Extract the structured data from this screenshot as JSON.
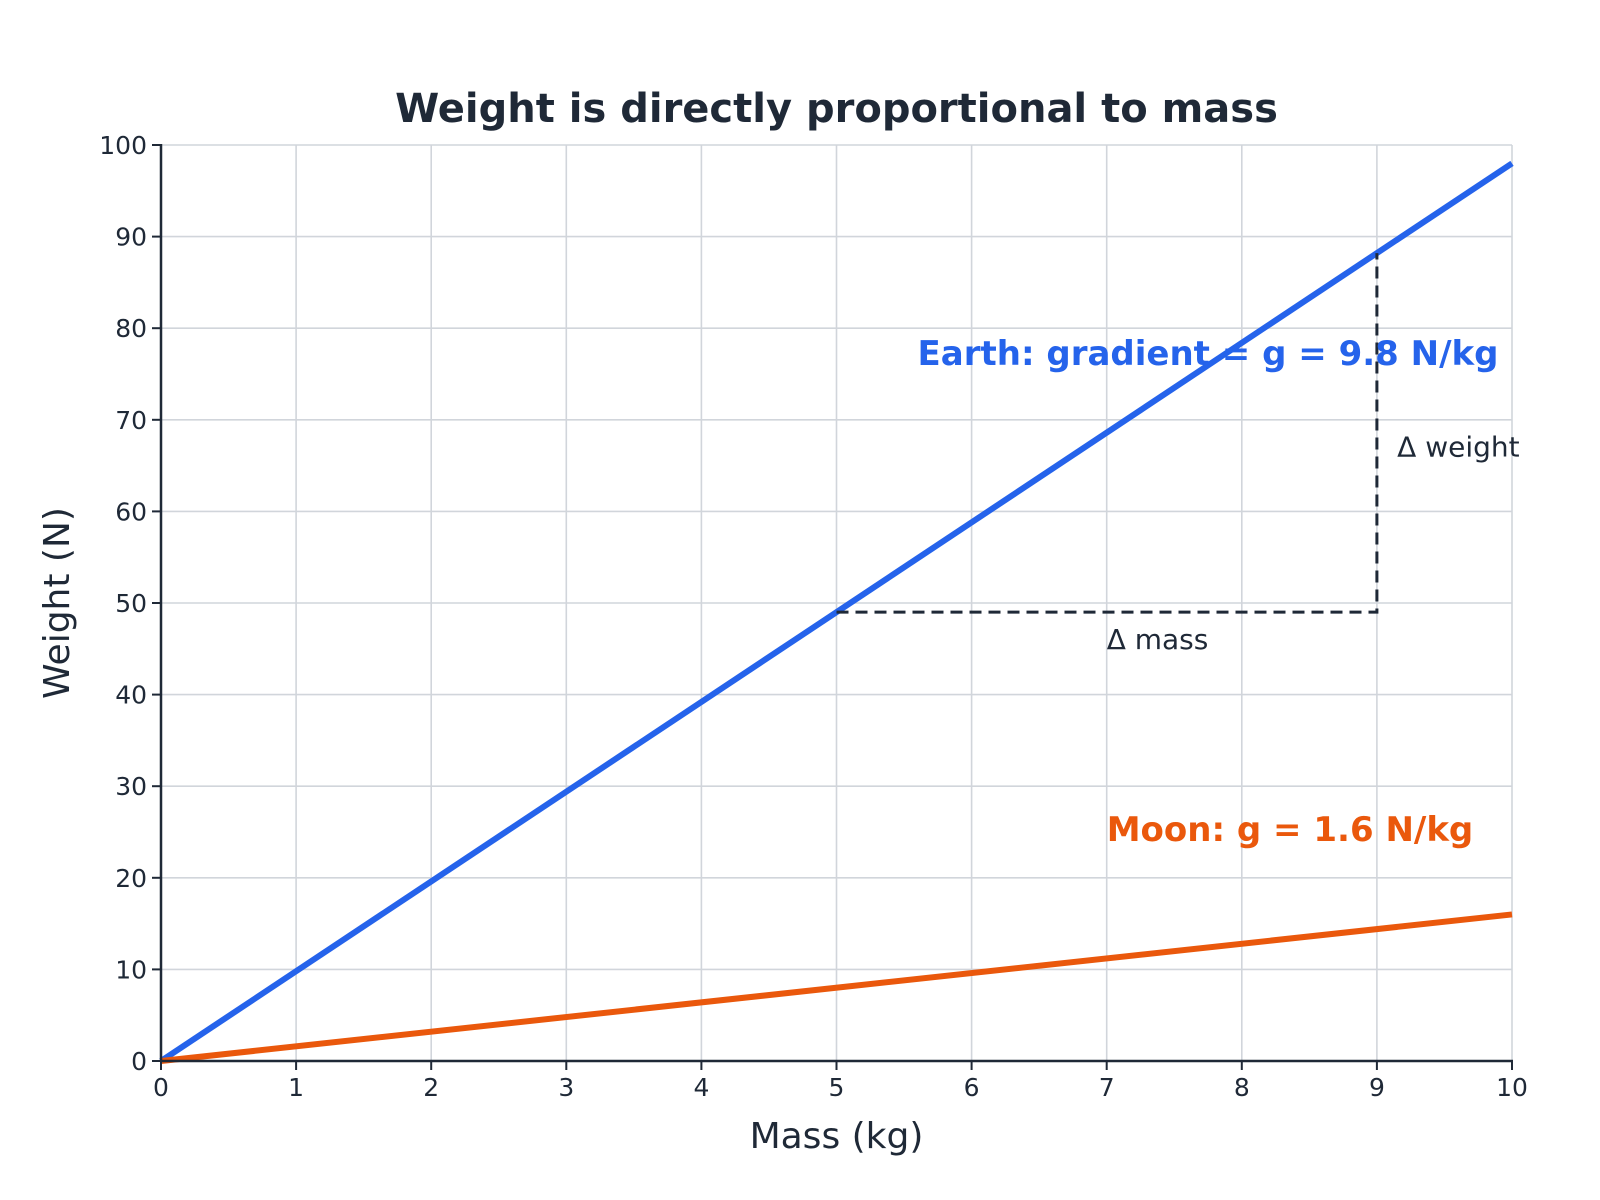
{
  "chart_data": {
    "type": "line",
    "title": "Weight is directly proportional to mass",
    "xlabel": "Mass (kg)",
    "ylabel": "Weight (N)",
    "xlim": [
      0,
      10
    ],
    "ylim": [
      0,
      100
    ],
    "xticks": [
      0,
      1,
      2,
      3,
      4,
      5,
      6,
      7,
      8,
      9,
      10
    ],
    "yticks": [
      0,
      10,
      20,
      30,
      40,
      50,
      60,
      70,
      80,
      90,
      100
    ],
    "grid": true,
    "series": [
      {
        "key": "earth",
        "color": "#2563eb",
        "x": [
          0,
          10
        ],
        "y": [
          0,
          98
        ]
      },
      {
        "key": "moon",
        "color": "#ea580c",
        "x": [
          0,
          10
        ],
        "y": [
          0,
          16
        ]
      }
    ],
    "annotations": {
      "earth_label": {
        "text": "Earth: gradient = g = 9.8 N/kg",
        "x": 5.6,
        "y": 76,
        "color": "#2563eb"
      },
      "moon_label": {
        "text": "Moon: g = 1.6 N/kg",
        "x": 7.0,
        "y": 24,
        "color": "#ea580c"
      },
      "delta_mass": {
        "text": "Δ mass",
        "x": 7.0,
        "y": 45
      },
      "delta_weight": {
        "text": "Δ weight",
        "x": 9.15,
        "y": 66
      }
    },
    "gradient_triangle": {
      "x1": 5,
      "y1": 49,
      "x2": 9,
      "y2": 88.2
    }
  }
}
